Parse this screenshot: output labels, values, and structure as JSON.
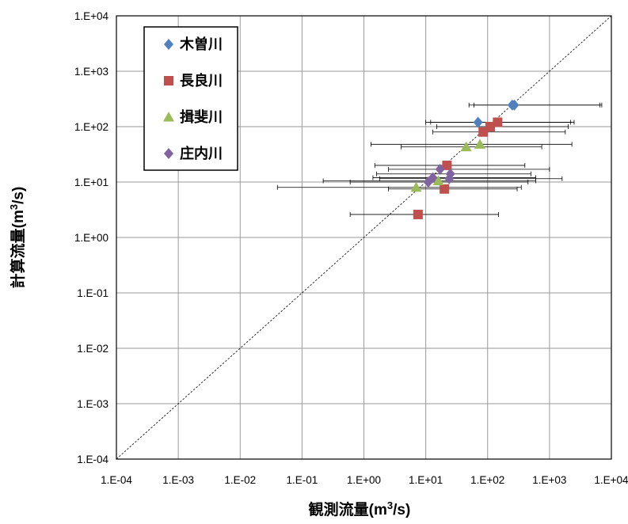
{
  "chart_data": {
    "type": "scatter",
    "scale": {
      "x": "log",
      "y": "log"
    },
    "xlim": [
      0.0001,
      10000
    ],
    "ylim": [
      0.0001,
      10000
    ],
    "grid": true,
    "x_ticks": [
      0.0001,
      0.001,
      0.01,
      0.1,
      1,
      10,
      100,
      1000,
      10000
    ],
    "y_ticks": [
      0.0001,
      0.001,
      0.01,
      0.1,
      1,
      10,
      100,
      1000,
      10000
    ],
    "x_tick_labels": [
      "1.E-04",
      "1.E-03",
      "1.E-02",
      "1.E-01",
      "1.E+00",
      "1.E+01",
      "1.E+02",
      "1.E+03",
      "1.E+04"
    ],
    "y_tick_labels": [
      "1.E-04",
      "1.E-03",
      "1.E-02",
      "1.E-01",
      "1.E+00",
      "1.E+01",
      "1.E+02",
      "1.E+03",
      "1.E+04"
    ],
    "xlabel": {
      "base": "観測流量(m",
      "sup": "3",
      "tail": "/s)"
    },
    "ylabel": {
      "base": "計算流量(m",
      "sup": "3",
      "tail": "/s)"
    },
    "reference_line": {
      "type": "y=x",
      "style": "dashed"
    },
    "legend_position": "top-left",
    "series": [
      {
        "name": "木曽川",
        "marker": "diamond",
        "color": "#4F81BD",
        "points": [
          {
            "x": 70,
            "y": 120,
            "xerr": [
              10,
              2500
            ]
          },
          {
            "x": 250,
            "y": 245,
            "xerr": [
              50,
              6500
            ]
          },
          {
            "x": 270,
            "y": 245,
            "xerr": [
              60,
              7000
            ]
          }
        ]
      },
      {
        "name": "長良川",
        "marker": "square",
        "color": "#C0504D",
        "points": [
          {
            "x": 145,
            "y": 120,
            "xerr": [
              12,
              2200
            ]
          },
          {
            "x": 110,
            "y": 100,
            "xerr": [
              15,
              2000
            ]
          },
          {
            "x": 85,
            "y": 80,
            "xerr": [
              13,
              1800
            ]
          },
          {
            "x": 22,
            "y": 20,
            "xerr": [
              1.5,
              400
            ]
          },
          {
            "x": 20,
            "y": 7.5,
            "xerr": [
              2.5,
              300
            ]
          },
          {
            "x": 7.5,
            "y": 2.6,
            "xerr": [
              0.6,
              150
            ]
          }
        ]
      },
      {
        "name": "揖斐川",
        "marker": "triangle",
        "color": "#9BBB59",
        "points": [
          {
            "x": 45,
            "y": 43,
            "xerr": [
              4,
              750
            ]
          },
          {
            "x": 75,
            "y": 48,
            "xerr": [
              1.3,
              2300
            ]
          },
          {
            "x": 16,
            "y": 10.5,
            "xerr": [
              0.22,
              600
            ]
          },
          {
            "x": 7,
            "y": 8,
            "xerr": [
              0.04,
              350
            ]
          }
        ]
      },
      {
        "name": "庄内川",
        "marker": "diamond",
        "color": "#8064A2",
        "points": [
          {
            "x": 17,
            "y": 17,
            "xerr": [
              2.5,
              1000
            ]
          },
          {
            "x": 25,
            "y": 14,
            "xerr": [
              1.6,
              500
            ]
          },
          {
            "x": 13,
            "y": 12,
            "xerr": [
              1.4,
              600
            ]
          },
          {
            "x": 24,
            "y": 11.5,
            "xerr": [
              1.8,
              1600
            ]
          },
          {
            "x": 11,
            "y": 10,
            "xerr": [
              0.6,
              450
            ]
          }
        ]
      }
    ]
  }
}
